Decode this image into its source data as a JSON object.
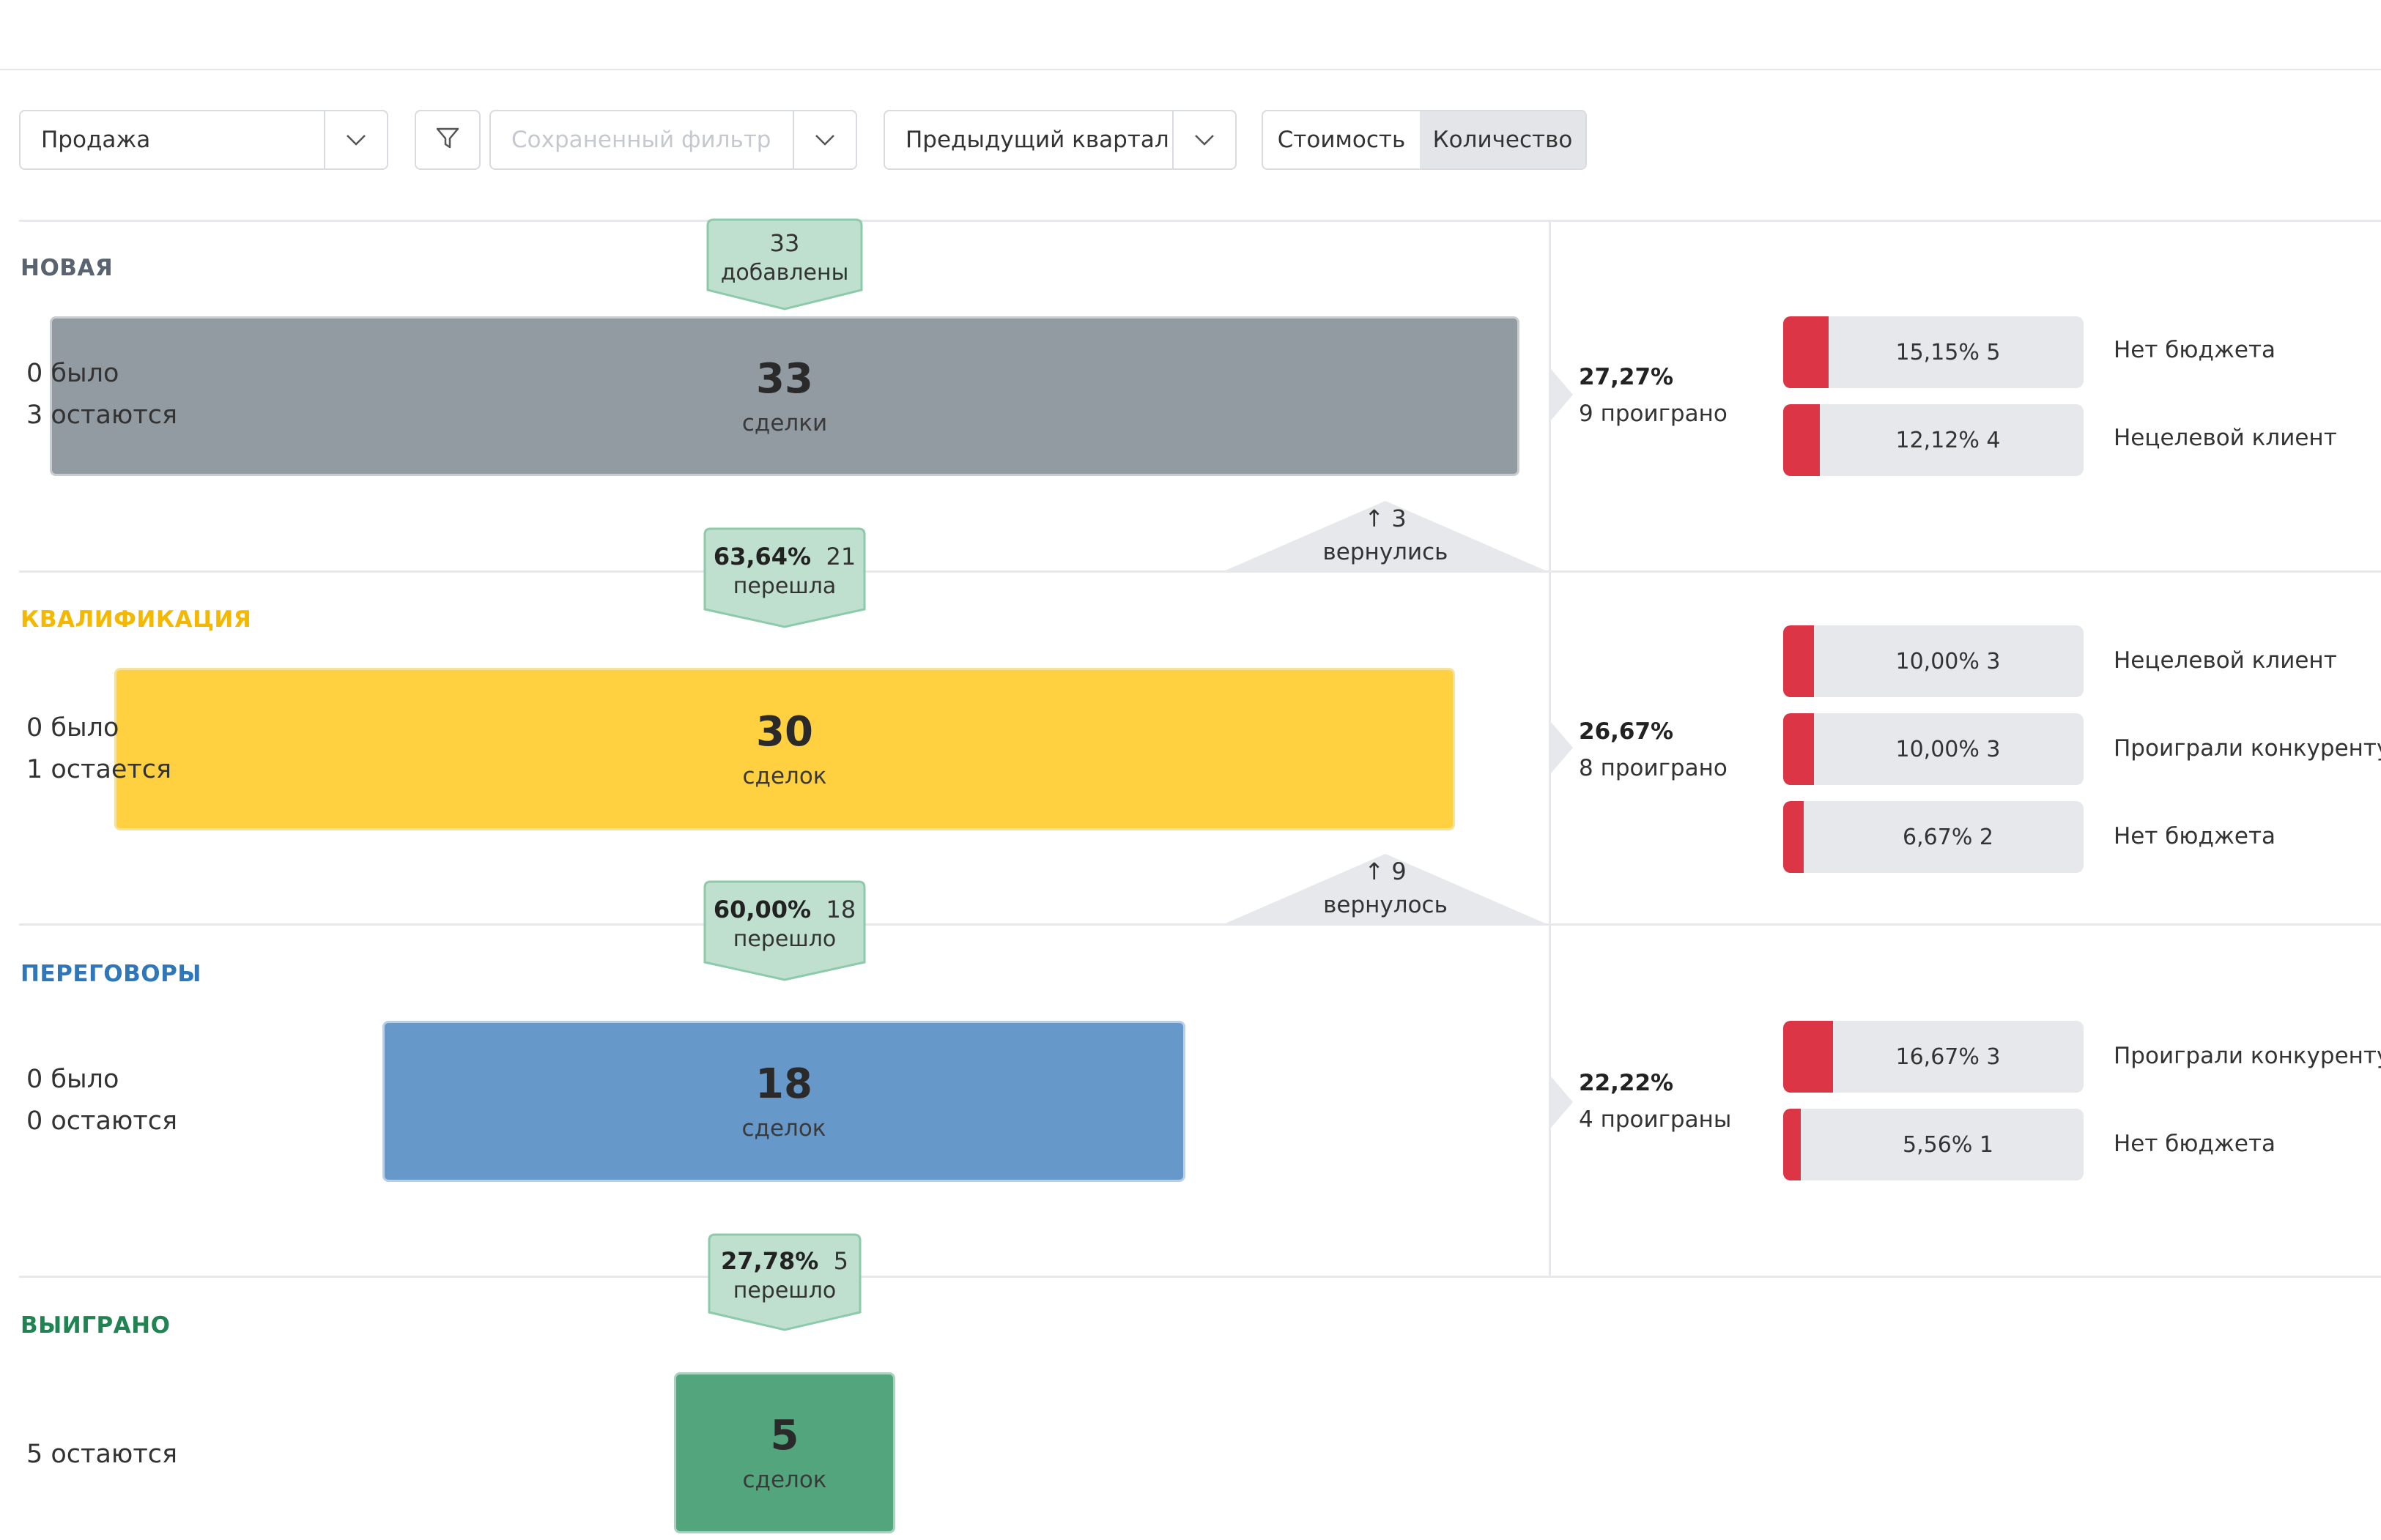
{
  "toolbar": {
    "pipeline": "Продажа",
    "saved_filter_placeholder": "Сохраненный фильтр",
    "period": "Предыдущий квартал",
    "mode_cost": "Стоимость",
    "mode_count": "Количество",
    "active_mode": "Количество"
  },
  "stages": [
    {
      "title": "НОВАЯ",
      "color": "#929aa2",
      "title_color": "#5a6470",
      "count": "33",
      "count_label": "сделки",
      "was": "0 было",
      "remain": "3 остаются",
      "added": {
        "count": "33",
        "label": "добавлены"
      },
      "lost": {
        "pct": "27,27%",
        "label": "9 проиграно",
        "reasons": [
          {
            "text": "15,15% 5",
            "label": "Нет бюджета",
            "share": 0.1515
          },
          {
            "text": "12,12% 4",
            "label": "Нецелевой клиент",
            "share": 0.1212
          }
        ]
      }
    },
    {
      "title": "КВАЛИФИКАЦИЯ",
      "color": "#ffd040",
      "title_color": "#f5b800",
      "count": "30",
      "count_label": "сделок",
      "was": "0 было",
      "remain": "1 остается",
      "conv_in": {
        "pct": "63,64%",
        "count": "21",
        "label": "перешла"
      },
      "returned": {
        "count": "3",
        "label": "вернулись"
      },
      "lost": {
        "pct": "26,67%",
        "label": "8 проиграно",
        "reasons": [
          {
            "text": "10,00% 3",
            "label": "Нецелевой клиент",
            "share": 0.1
          },
          {
            "text": "10,00% 3",
            "label": "Проиграли конкуренту",
            "share": 0.1
          },
          {
            "text": "6,67% 2",
            "label": "Нет бюджета",
            "share": 0.0667
          }
        ]
      }
    },
    {
      "title": "ПЕРЕГОВОРЫ",
      "color": "#6699c9",
      "title_color": "#2f77b8",
      "count": "18",
      "count_label": "сделок",
      "was": "0 было",
      "remain": "0 остаются",
      "conv_in": {
        "pct": "60,00%",
        "count": "18",
        "label": "перешло"
      },
      "returned": {
        "count": "9",
        "label": "вернулось"
      },
      "lost": {
        "pct": "22,22%",
        "label": "4 проиграны",
        "reasons": [
          {
            "text": "16,67% 3",
            "label": "Проиграли конкуренту",
            "share": 0.1667
          },
          {
            "text": "5,56% 1",
            "label": "Нет бюджета",
            "share": 0.0556
          }
        ]
      }
    },
    {
      "title": "ВЫИГРАНО",
      "color": "#52a57c",
      "title_color": "#218352",
      "count": "5",
      "count_label": "сделок",
      "remain": "5 остаются",
      "conv_in": {
        "pct": "27,78%",
        "count": "5",
        "label": "перешло"
      }
    }
  ]
}
